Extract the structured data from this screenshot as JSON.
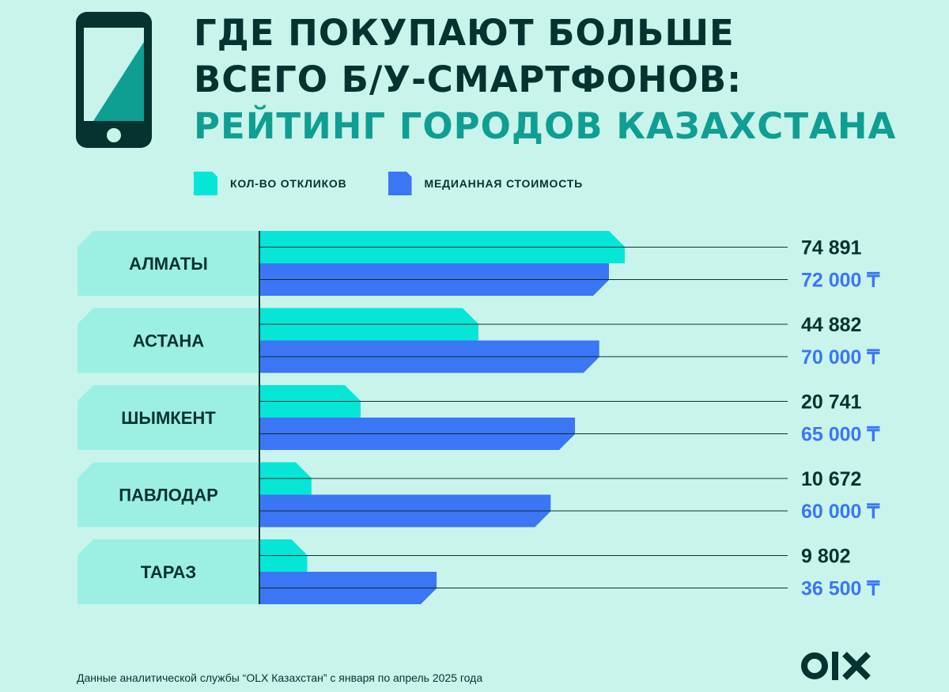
{
  "header": {
    "title_line1": "ГДЕ ПОКУПАЮТ БОЛЬШЕ",
    "title_line2": "ВСЕГО Б/У-СМАРТФОНОВ:",
    "title_line3": "РЕЙТИНГ ГОРОДОВ КАЗАХСТАНА"
  },
  "colors": {
    "background": "#c9f4ec",
    "responses": "#05e6d6",
    "price": "#3b76f5",
    "label_box": "#9cefe3",
    "dark": "#06322f",
    "accent": "#0e9e92"
  },
  "chart_data": {
    "type": "bar",
    "orientation": "horizontal",
    "categories": [
      "АЛМАТЫ",
      "АСТАНА",
      "ШЫМКЕНТ",
      "ПАВЛОДАР",
      "ТАРАЗ"
    ],
    "series": [
      {
        "name": "КОЛ-ВО ОТКЛИКОВ",
        "color": "#05e6d6",
        "values": [
          74891,
          44882,
          20741,
          10672,
          9802
        ],
        "value_labels": [
          "74 891",
          "44 882",
          "20 741",
          "10 672",
          "9 802"
        ]
      },
      {
        "name": "МЕДИАННАЯ СТОИМОСТЬ",
        "color": "#3b76f5",
        "values": [
          72000,
          70000,
          65000,
          60000,
          36500
        ],
        "value_labels": [
          "72 000 ₸",
          "70 000 ₸",
          "65 000 ₸",
          "60 000 ₸",
          "36 500 ₸"
        ]
      }
    ],
    "legend": "top-left",
    "grid": false
  },
  "footer": {
    "note": "Данные аналитической службы “OLX Казахстан” с января по апрель 2025 года",
    "logo_text": "OLX"
  }
}
